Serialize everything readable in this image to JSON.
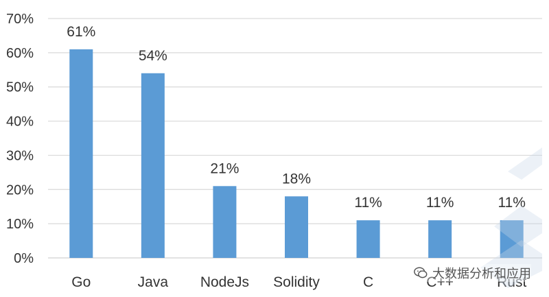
{
  "chart_data": {
    "type": "bar",
    "categories": [
      "Go",
      "Java",
      "NodeJs",
      "Solidity",
      "C",
      "C++",
      "Rust"
    ],
    "values": [
      61,
      54,
      21,
      18,
      11,
      11,
      11
    ],
    "data_labels": [
      "61%",
      "54%",
      "21%",
      "18%",
      "11%",
      "11%",
      "11%"
    ],
    "ylim": [
      0,
      70
    ],
    "yticks": [
      0,
      10,
      20,
      30,
      40,
      50,
      60,
      70
    ],
    "ytick_labels": [
      "0%",
      "10%",
      "20%",
      "30%",
      "40%",
      "50%",
      "60%",
      "70%"
    ],
    "grid": true,
    "bar_color": "#5B9BD5",
    "grid_color": "#D9D9D9"
  },
  "watermark": {
    "text": "大数据分析和应用",
    "icon": "wechat-icon"
  }
}
